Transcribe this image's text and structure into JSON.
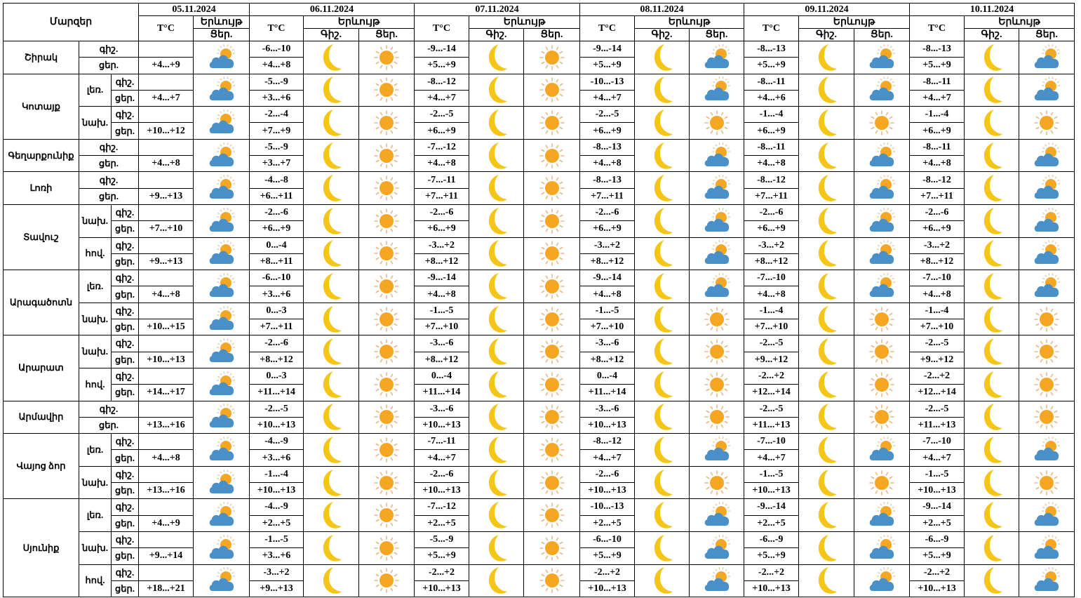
{
  "header": {
    "regions_label": "Մարզեր",
    "temp_label": "T°C",
    "phenomenon_label": "Երևույթ",
    "night_label": "Գիշ.",
    "day_label": "Ցեր.",
    "dates": [
      "05.11.2024",
      "06.11.2024",
      "07.11.2024",
      "08.11.2024",
      "09.11.2024",
      "10.11.2024"
    ]
  },
  "row_labels": {
    "night": "գիշ.",
    "day": "ցեր."
  },
  "icons": {
    "moon": "moon-icon",
    "sun": "sun-icon",
    "cloud": "sun-behind-cloud-icon"
  },
  "colors": {
    "moon": "#f5c518",
    "sun": "#f5a623",
    "cloud": "#4a90c8"
  },
  "regions": [
    {
      "name": "Շիրակ",
      "zones": [
        {
          "zone": "",
          "first_day": "+4...+9",
          "first_icon": "cloud",
          "days": [
            {
              "night": "-6...-10",
              "day": "+4...+8",
              "icon": "sun"
            },
            {
              "night": "-9...-14",
              "day": "+5...+9",
              "icon": "sun"
            },
            {
              "night": "-9...-14",
              "day": "+5...+9",
              "icon": "cloud"
            },
            {
              "night": "-8...-13",
              "day": "+5...+9",
              "icon": "cloud"
            },
            {
              "night": "-8...-13",
              "day": "+5...+9",
              "icon": "cloud"
            }
          ]
        }
      ]
    },
    {
      "name": "Կոտայք",
      "zones": [
        {
          "zone": "լեռ.",
          "first_day": "+4...+7",
          "first_icon": "cloud",
          "days": [
            {
              "night": "-5...-9",
              "day": "+3...+6",
              "icon": "sun"
            },
            {
              "night": "-8...-12",
              "day": "+4...+7",
              "icon": "sun"
            },
            {
              "night": "-10...-13",
              "day": "+4...+7",
              "icon": "cloud"
            },
            {
              "night": "-8...-11",
              "day": "+4...+6",
              "icon": "cloud"
            },
            {
              "night": "-8...-11",
              "day": "+4...+7",
              "icon": "cloud"
            }
          ]
        },
        {
          "zone": "նախ.",
          "first_day": "+10...+12",
          "first_icon": "cloud",
          "days": [
            {
              "night": "-2...-4",
              "day": "+7...+9",
              "icon": "sun"
            },
            {
              "night": "-2...-5",
              "day": "+6...+9",
              "icon": "sun"
            },
            {
              "night": "-2...-5",
              "day": "+6...+9",
              "icon": "sun"
            },
            {
              "night": "-1...-4",
              "day": "+6...+9",
              "icon": "sun"
            },
            {
              "night": "-1...-4",
              "day": "+6...+9",
              "icon": "sun"
            }
          ]
        }
      ]
    },
    {
      "name": "Գեղարքունիք",
      "zones": [
        {
          "zone": "",
          "first_day": "+4...+8",
          "first_icon": "cloud",
          "days": [
            {
              "night": "-5...-9",
              "day": "+3...+7",
              "icon": "sun"
            },
            {
              "night": "-7...-12",
              "day": "+4...+8",
              "icon": "sun"
            },
            {
              "night": "-8...-13",
              "day": "+4...+8",
              "icon": "cloud"
            },
            {
              "night": "-8...-11",
              "day": "+4...+8",
              "icon": "cloud"
            },
            {
              "night": "-8...-11",
              "day": "+4...+8",
              "icon": "cloud"
            }
          ]
        }
      ]
    },
    {
      "name": "Լոռի",
      "zones": [
        {
          "zone": "",
          "first_day": "+9...+13",
          "first_icon": "cloud",
          "days": [
            {
              "night": "-4...-8",
              "day": "+6...+11",
              "icon": "sun"
            },
            {
              "night": "-7...-11",
              "day": "+7...+11",
              "icon": "sun"
            },
            {
              "night": "-8...-13",
              "day": "+7...+11",
              "icon": "cloud"
            },
            {
              "night": "-8...-12",
              "day": "+7...+11",
              "icon": "cloud"
            },
            {
              "night": "-8...-12",
              "day": "+7...+11",
              "icon": "cloud"
            }
          ]
        }
      ]
    },
    {
      "name": "Տավուշ",
      "zones": [
        {
          "zone": "նախ.",
          "first_day": "+7...+10",
          "first_icon": "cloud",
          "days": [
            {
              "night": "-2...-6",
              "day": "+6...+9",
              "icon": "sun"
            },
            {
              "night": "-2...-6",
              "day": "+6...+9",
              "icon": "sun"
            },
            {
              "night": "-2...-6",
              "day": "+6...+9",
              "icon": "cloud"
            },
            {
              "night": "-2...-6",
              "day": "+6...+9",
              "icon": "cloud"
            },
            {
              "night": "-2...-6",
              "day": "+6...+9",
              "icon": "cloud"
            }
          ]
        },
        {
          "zone": "հով.",
          "first_day": "+9...+13",
          "first_icon": "cloud",
          "days": [
            {
              "night": "0...-4",
              "day": "+8...+11",
              "icon": "sun"
            },
            {
              "night": "-3...+2",
              "day": "+8...+12",
              "icon": "sun"
            },
            {
              "night": "-3...+2",
              "day": "+8...+12",
              "icon": "cloud"
            },
            {
              "night": "-3...+2",
              "day": "+8...+12",
              "icon": "cloud"
            },
            {
              "night": "-3...+2",
              "day": "+8...+12",
              "icon": "cloud"
            }
          ]
        }
      ]
    },
    {
      "name": "Արագածոտն",
      "zones": [
        {
          "zone": "լեռ.",
          "first_day": "+4...+8",
          "first_icon": "cloud",
          "days": [
            {
              "night": "-6...-10",
              "day": "+3...+6",
              "icon": "sun"
            },
            {
              "night": "-9...-14",
              "day": "+4...+8",
              "icon": "sun"
            },
            {
              "night": "-9...-14",
              "day": "+4...+8",
              "icon": "cloud"
            },
            {
              "night": "-7...-10",
              "day": "+4...+8",
              "icon": "cloud"
            },
            {
              "night": "-7...-10",
              "day": "+4...+8",
              "icon": "cloud"
            }
          ]
        },
        {
          "zone": "նախ.",
          "first_day": "+10...+15",
          "first_icon": "cloud",
          "days": [
            {
              "night": "0...-3",
              "day": "+7...+11",
              "icon": "sun"
            },
            {
              "night": "-1...-5",
              "day": "+7...+10",
              "icon": "sun"
            },
            {
              "night": "-1...-5",
              "day": "+7...+10",
              "icon": "sun"
            },
            {
              "night": "-1...-4",
              "day": "+7...+10",
              "icon": "sun"
            },
            {
              "night": "-1...-4",
              "day": "+7...+10",
              "icon": "sun"
            }
          ]
        }
      ]
    },
    {
      "name": "Արարատ",
      "zones": [
        {
          "zone": "նախ.",
          "first_day": "+10...+13",
          "first_icon": "cloud",
          "days": [
            {
              "night": "-2...-6",
              "day": "+8...+12",
              "icon": "sun"
            },
            {
              "night": "-3...-6",
              "day": "+8...+12",
              "icon": "sun"
            },
            {
              "night": "-3...-6",
              "day": "+8...+12",
              "icon": "sun"
            },
            {
              "night": "-2...-5",
              "day": "+9...+12",
              "icon": "sun"
            },
            {
              "night": "-2...-5",
              "day": "+9...+12",
              "icon": "sun"
            }
          ]
        },
        {
          "zone": "հով.",
          "first_day": "+14...+17",
          "first_icon": "cloud",
          "days": [
            {
              "night": "0...-3",
              "day": "+11...+14",
              "icon": "sun"
            },
            {
              "night": "0...-4",
              "day": "+11...+14",
              "icon": "sun"
            },
            {
              "night": "0...-4",
              "day": "+11...+14",
              "icon": "sun"
            },
            {
              "night": "-2...+2",
              "day": "+12...+14",
              "icon": "sun"
            },
            {
              "night": "-2...+2",
              "day": "+12...+14",
              "icon": "sun"
            }
          ]
        }
      ]
    },
    {
      "name": "Արմավիր",
      "zones": [
        {
          "zone": "",
          "first_day": "+13...+16",
          "first_icon": "cloud",
          "days": [
            {
              "night": "-2...-5",
              "day": "+10...+13",
              "icon": "sun"
            },
            {
              "night": "-3...-6",
              "day": "+10...+13",
              "icon": "sun"
            },
            {
              "night": "-3...-6",
              "day": "+10...+13",
              "icon": "sun"
            },
            {
              "night": "-2...-5",
              "day": "+11...+13",
              "icon": "sun"
            },
            {
              "night": "-2...-5",
              "day": "+11...+13",
              "icon": "sun"
            }
          ]
        }
      ]
    },
    {
      "name": "Վայոց ձոր",
      "zones": [
        {
          "zone": "լեռ.",
          "first_day": "+4...+8",
          "first_icon": "cloud",
          "days": [
            {
              "night": "-4...-9",
              "day": "+3...+6",
              "icon": "sun"
            },
            {
              "night": "-7...-11",
              "day": "+4...+7",
              "icon": "sun"
            },
            {
              "night": "-8...-12",
              "day": "+4...+7",
              "icon": "cloud"
            },
            {
              "night": "-7...-10",
              "day": "+4...+7",
              "icon": "cloud"
            },
            {
              "night": "-7...-10",
              "day": "+4...+7",
              "icon": "cloud"
            }
          ]
        },
        {
          "zone": "նախ.",
          "first_day": "+13...+16",
          "first_icon": "cloud",
          "days": [
            {
              "night": "-1...-4",
              "day": "+10...+13",
              "icon": "sun"
            },
            {
              "night": "-2...-6",
              "day": "+10...+13",
              "icon": "sun"
            },
            {
              "night": "-2...-6",
              "day": "+10...+13",
              "icon": "sun"
            },
            {
              "night": "-1...-5",
              "day": "+10...+13",
              "icon": "sun"
            },
            {
              "night": "-1...-5",
              "day": "+10...+13",
              "icon": "sun"
            }
          ]
        }
      ]
    },
    {
      "name": "Սյունիք",
      "zones": [
        {
          "zone": "լեռ.",
          "first_day": "+4...+9",
          "first_icon": "cloud",
          "days": [
            {
              "night": "-4...-9",
              "day": "+2...+5",
              "icon": "sun"
            },
            {
              "night": "-7...-12",
              "day": "+2...+5",
              "icon": "sun"
            },
            {
              "night": "-10...-13",
              "day": "+2...+5",
              "icon": "cloud"
            },
            {
              "night": "-9...-14",
              "day": "+2...+5",
              "icon": "cloud"
            },
            {
              "night": "-9...-14",
              "day": "+2...+5",
              "icon": "cloud"
            }
          ]
        },
        {
          "zone": "նախ.",
          "first_day": "+9...+14",
          "first_icon": "cloud",
          "days": [
            {
              "night": "-1...-5",
              "day": "+3...+6",
              "icon": "sun"
            },
            {
              "night": "-5...-9",
              "day": "+5...+9",
              "icon": "sun"
            },
            {
              "night": "-6...-10",
              "day": "+5...+9",
              "icon": "cloud"
            },
            {
              "night": "-6...-9",
              "day": "+5...+9",
              "icon": "cloud"
            },
            {
              "night": "-6...-9",
              "day": "+5...+9",
              "icon": "cloud"
            }
          ]
        },
        {
          "zone": "հով.",
          "first_day": "+18...+21",
          "first_icon": "cloud",
          "days": [
            {
              "night": "-3...+2",
              "day": "+9...+13",
              "icon": "sun"
            },
            {
              "night": "-2...+2",
              "day": "+10...+13",
              "icon": "sun"
            },
            {
              "night": "-2...+2",
              "day": "+10...+13",
              "icon": "cloud"
            },
            {
              "night": "-2...+2",
              "day": "+10...+13",
              "icon": "cloud"
            },
            {
              "night": "-2...+2",
              "day": "+10...+13",
              "icon": "cloud"
            }
          ]
        }
      ]
    }
  ]
}
